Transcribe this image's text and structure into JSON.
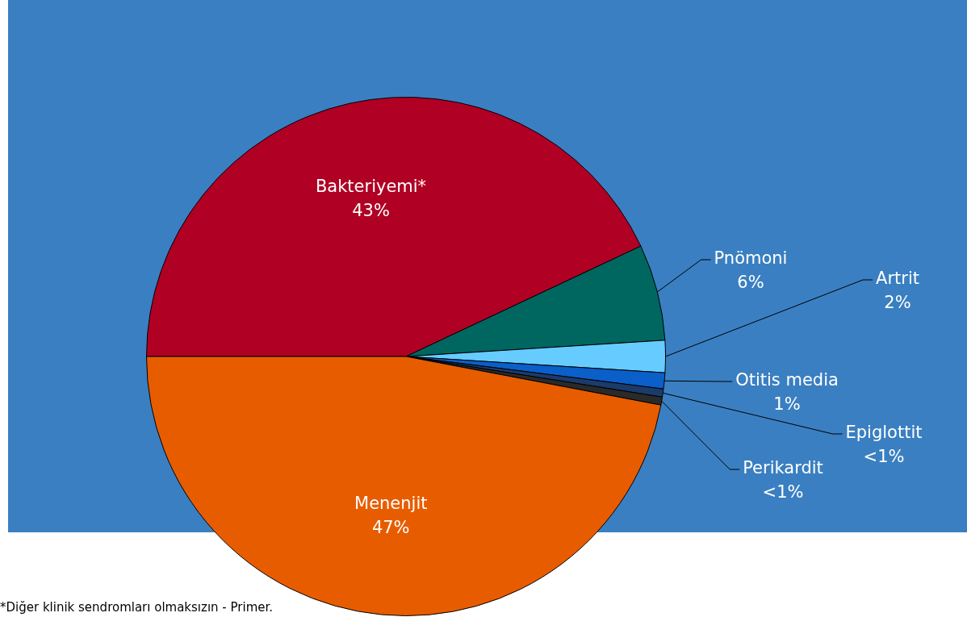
{
  "chart_data": {
    "type": "pie",
    "categories": [
      "Bakteriyemi*",
      "Pnömoni",
      "Artrit",
      "Otitis media",
      "Epiglottit",
      "Perikardit",
      "Menenjit"
    ],
    "values": [
      43,
      6,
      2,
      1,
      0.5,
      0.5,
      47
    ],
    "value_labels": [
      "43%",
      "6%",
      "2%",
      "1%",
      "<1%",
      "<1%",
      "47%"
    ],
    "colors": [
      "#b00024",
      "#006660",
      "#66ccff",
      "#0a5fc8",
      "#1b3b6b",
      "#2a2a2a",
      "#e85c00"
    ],
    "annotations": [
      "*Diğer klinik sendromları olmaksızın - Primer."
    ]
  }
}
